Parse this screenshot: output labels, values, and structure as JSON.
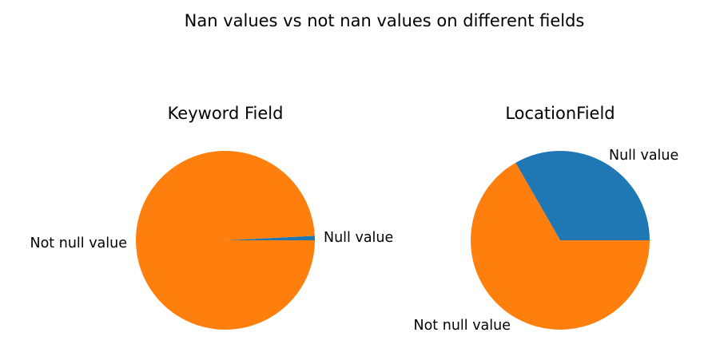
{
  "figure": {
    "title": "Nan values vs not nan values on different fields"
  },
  "chart_data": [
    {
      "type": "pie",
      "title": "Keyword Field",
      "labels": [
        "Null value",
        "Not null value"
      ],
      "values": [
        0.8,
        99.2
      ],
      "colors": [
        "#1f77b4",
        "#ff7f0e"
      ],
      "start_angle_deg": 0,
      "direction": "counterclockwise"
    },
    {
      "type": "pie",
      "title": "LocationField",
      "labels": [
        "Null value",
        "Not null value"
      ],
      "values": [
        33.3,
        66.7
      ],
      "colors": [
        "#1f77b4",
        "#ff7f0e"
      ],
      "start_angle_deg": 0,
      "direction": "counterclockwise"
    }
  ]
}
